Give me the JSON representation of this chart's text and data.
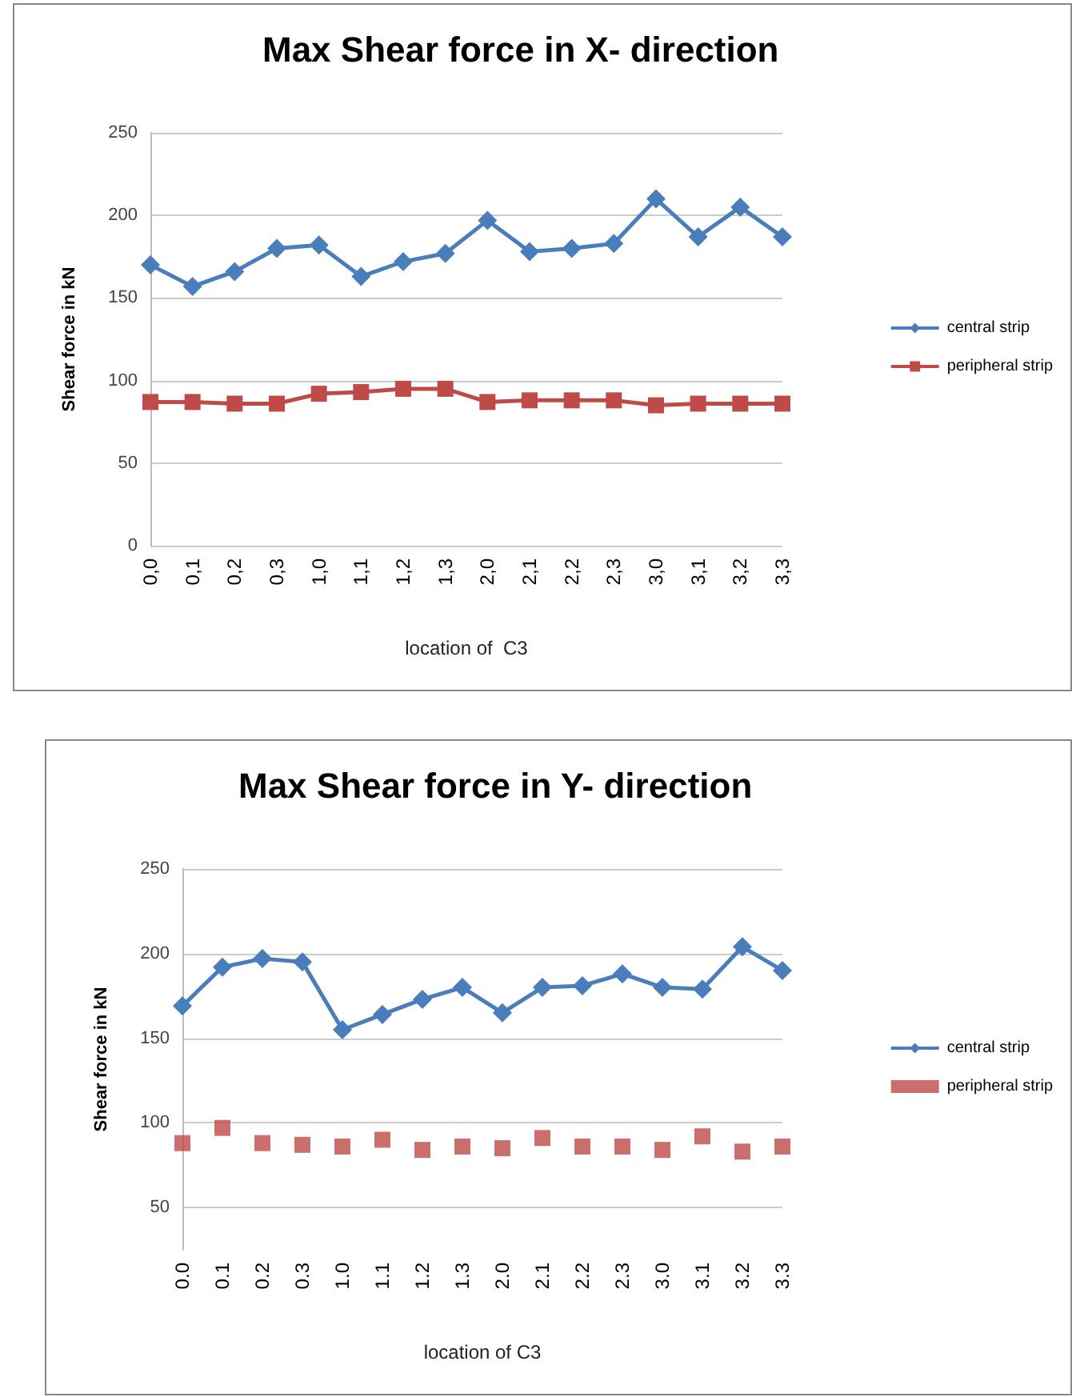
{
  "chart_data": [
    {
      "type": "line",
      "title": "Max Shear force in X- direction",
      "xlabel": "location of  C3",
      "ylabel": "Shear force in kN",
      "categories": [
        "0,0",
        "0,1",
        "0,2",
        "0,3",
        "1,0",
        "1,1",
        "1,2",
        "1,3",
        "2,0",
        "2,1",
        "2,2",
        "2,3",
        "3,0",
        "3,1",
        "3,2",
        "3,3"
      ],
      "ylim": [
        0,
        250
      ],
      "yticks": [
        0,
        50,
        100,
        150,
        200,
        250
      ],
      "grid": "y",
      "legend": "right",
      "series": [
        {
          "name": "central strip",
          "color": "#4a7ebb",
          "marker": "diamond",
          "values": [
            170,
            157,
            166,
            180,
            182,
            163,
            172,
            177,
            197,
            178,
            180,
            183,
            210,
            187,
            205,
            187
          ]
        },
        {
          "name": "peripheral strip",
          "color": "#be4b48",
          "marker": "square",
          "values": [
            87,
            87,
            86,
            86,
            92,
            93,
            95,
            95,
            87,
            88,
            88,
            88,
            85,
            86,
            86,
            86
          ]
        }
      ]
    },
    {
      "type": "line",
      "title": "Max Shear force in Y- direction",
      "xlabel": "location of C3",
      "ylabel": "Shear force in kN",
      "categories": [
        "0.0",
        "0.1",
        "0.2",
        "0.3",
        "1.0",
        "1.1",
        "1.2",
        "1.3",
        "2.0",
        "2.1",
        "2.2",
        "2.3",
        "3.0",
        "3.1",
        "3.2",
        "3.3"
      ],
      "ylim": [
        25,
        250
      ],
      "yticks": [
        50,
        100,
        150,
        200,
        250
      ],
      "grid": "y",
      "legend": "right",
      "series": [
        {
          "name": "central strip",
          "color": "#4a7ebb",
          "marker": "diamond",
          "values": [
            169,
            192,
            197,
            195,
            155,
            164,
            173,
            180,
            165,
            180,
            181,
            188,
            180,
            179,
            204,
            190
          ]
        },
        {
          "name": "peripheral strip",
          "type": "scatter",
          "color": "#be4b48",
          "marker": "square",
          "values": [
            88,
            97,
            88,
            87,
            86,
            90,
            84,
            86,
            85,
            91,
            86,
            86,
            84,
            92,
            83,
            86
          ]
        }
      ]
    }
  ]
}
